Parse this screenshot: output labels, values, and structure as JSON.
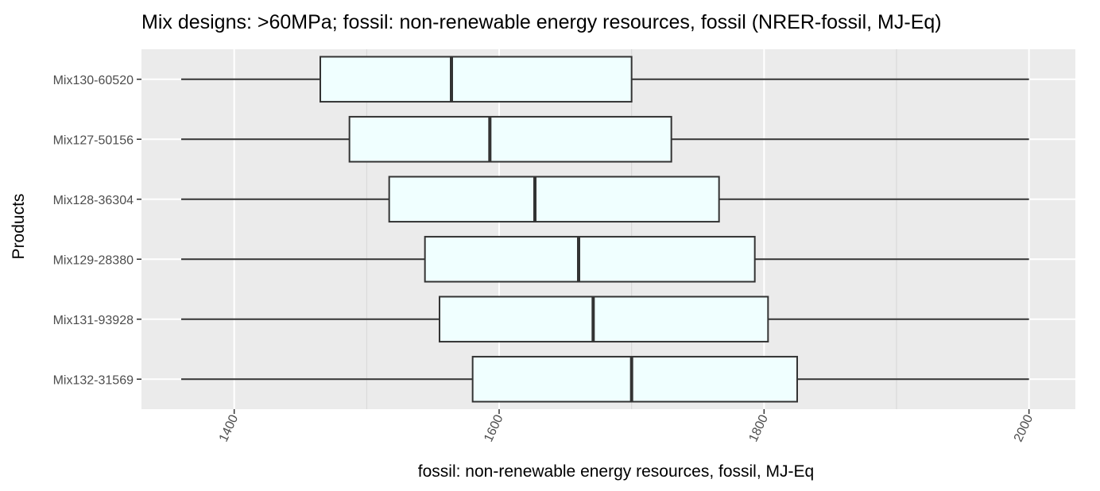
{
  "chart_data": {
    "type": "boxplot",
    "orientation": "horizontal",
    "title": "Mix designs: >60MPa; fossil: non-renewable energy resources, fossil (NRER-fossil, MJ-Eq)",
    "xlabel": "fossil: non-renewable energy resources, fossil, MJ-Eq",
    "ylabel": "Products",
    "xlim": [
      1330,
      2035
    ],
    "xticks": [
      1400,
      1600,
      1800,
      2000
    ],
    "xtick_labels": [
      "1400",
      "1600",
      "1800",
      "2000"
    ],
    "xtick_rotation": "-65deg",
    "grid": true,
    "legend": "none",
    "categories": [
      "Mix130-60520",
      "Mix127-50156",
      "Mix128-36304",
      "Mix129-28380",
      "Mix131-93928",
      "Mix132-31569"
    ],
    "boxes": [
      {
        "name": "Mix130-60520",
        "whisker_low": 1360,
        "q1": 1465,
        "median": 1564,
        "q3": 1700,
        "whisker_high": 2000
      },
      {
        "name": "Mix127-50156",
        "whisker_low": 1360,
        "q1": 1487,
        "median": 1593,
        "q3": 1730,
        "whisker_high": 2000
      },
      {
        "name": "Mix128-36304",
        "whisker_low": 1360,
        "q1": 1517,
        "median": 1627,
        "q3": 1766,
        "whisker_high": 2000
      },
      {
        "name": "Mix129-28380",
        "whisker_low": 1360,
        "q1": 1544,
        "median": 1660,
        "q3": 1793,
        "whisker_high": 2000
      },
      {
        "name": "Mix131-93928",
        "whisker_low": 1360,
        "q1": 1555,
        "median": 1671,
        "q3": 1803,
        "whisker_high": 2000
      },
      {
        "name": "Mix132-31569",
        "whisker_low": 1360,
        "q1": 1580,
        "median": 1700,
        "q3": 1825,
        "whisker_high": 2000
      }
    ],
    "colors": {
      "panel_background": "#ebebeb",
      "grid_major": "#ffffff",
      "grid_minor": "#d6d6d6",
      "box_fill": "#f0ffff",
      "box_stroke": "#333333",
      "whisker": "#333333"
    }
  }
}
